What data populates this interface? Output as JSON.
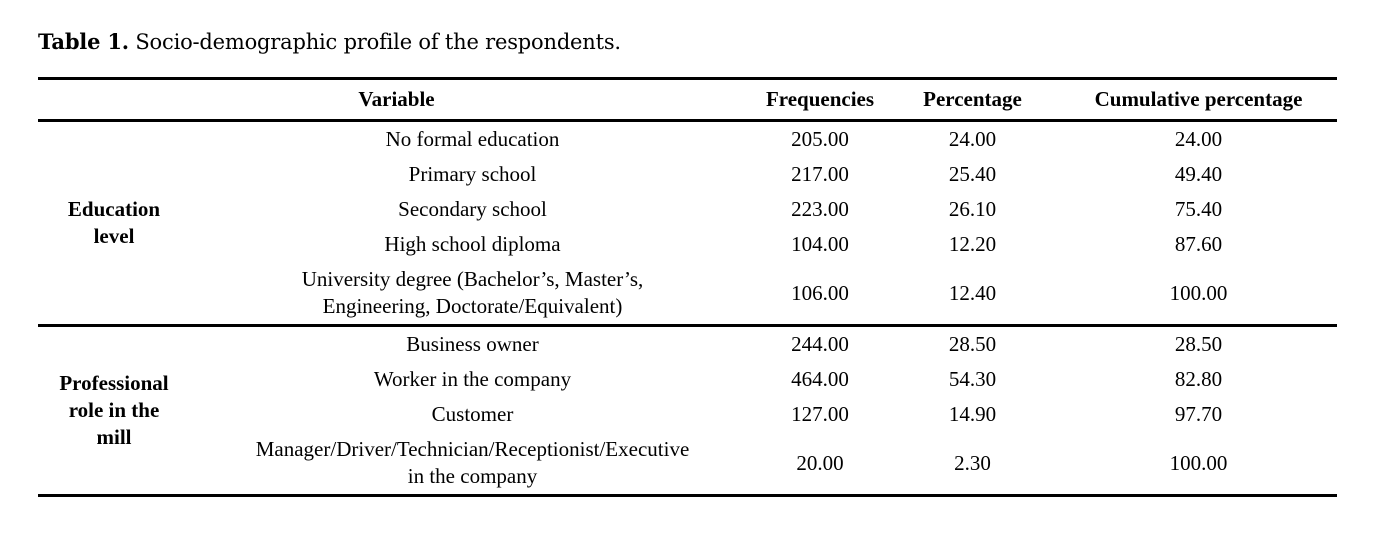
{
  "caption": {
    "label": "Table 1.",
    "text": "Socio-demographic profile of the respondents."
  },
  "table": {
    "columns": [
      "Variable",
      "Frequencies",
      "Percentage",
      "Cumulative percentage"
    ],
    "groups": [
      {
        "label": "Education\nlevel",
        "rows": [
          {
            "variable": "No formal education",
            "frequencies": "205.00",
            "percentage": "24.00",
            "cumulative": "24.00"
          },
          {
            "variable": "Primary school",
            "frequencies": "217.00",
            "percentage": "25.40",
            "cumulative": "49.40"
          },
          {
            "variable": "Secondary school",
            "frequencies": "223.00",
            "percentage": "26.10",
            "cumulative": "75.40"
          },
          {
            "variable": "High school diploma",
            "frequencies": "104.00",
            "percentage": "12.20",
            "cumulative": "87.60"
          },
          {
            "variable": "University degree (Bachelor’s, Master’s,\nEngineering, Doctorate/Equivalent)",
            "frequencies": "106.00",
            "percentage": "12.40",
            "cumulative": "100.00"
          }
        ]
      },
      {
        "label": "Professional\nrole in the\nmill",
        "rows": [
          {
            "variable": "Business owner",
            "frequencies": "244.00",
            "percentage": "28.50",
            "cumulative": "28.50"
          },
          {
            "variable": "Worker in the company",
            "frequencies": "464.00",
            "percentage": "54.30",
            "cumulative": "82.80"
          },
          {
            "variable": "Customer",
            "frequencies": "127.00",
            "percentage": "14.90",
            "cumulative": "97.70"
          },
          {
            "variable": "Manager/Driver/Technician/Receptionist/Executive\nin the company",
            "frequencies": "20.00",
            "percentage": "2.30",
            "cumulative": "100.00"
          }
        ]
      }
    ]
  },
  "colors": {
    "text": "#000000",
    "background": "#ffffff",
    "rule": "#000000"
  }
}
